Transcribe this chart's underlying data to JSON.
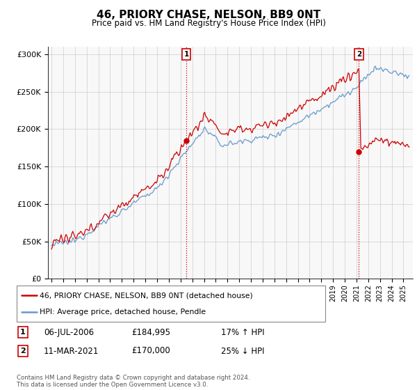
{
  "title": "46, PRIORY CHASE, NELSON, BB9 0NT",
  "subtitle": "Price paid vs. HM Land Registry's House Price Index (HPI)",
  "legend_label_red": "46, PRIORY CHASE, NELSON, BB9 0NT (detached house)",
  "legend_label_blue": "HPI: Average price, detached house, Pendle",
  "event1_label": "1",
  "event1_date": "06-JUL-2006",
  "event1_price": "£184,995",
  "event1_change": "17% ↑ HPI",
  "event1_x": 2006.5,
  "event1_y": 184995,
  "event2_label": "2",
  "event2_date": "11-MAR-2021",
  "event2_price": "£170,000",
  "event2_change": "25% ↓ HPI",
  "event2_x": 2021.2,
  "event2_y": 170000,
  "footer": "Contains HM Land Registry data © Crown copyright and database right 2024.\nThis data is licensed under the Open Government Licence v3.0.",
  "ylim": [
    0,
    310000
  ],
  "xlim_min": 1994.7,
  "xlim_max": 2025.8,
  "color_red": "#cc0000",
  "color_blue": "#6699cc",
  "color_grid": "#cccccc",
  "color_bg": "#f8f8f8",
  "color_event_line": "#cc0000",
  "color_event_box": "#cc0000"
}
